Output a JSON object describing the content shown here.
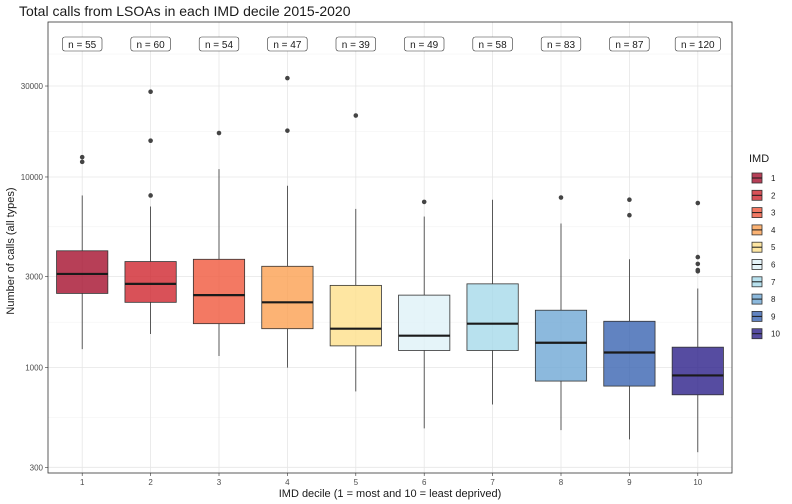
{
  "chart_data": {
    "type": "boxplot",
    "title": "Total calls from LSOAs in each IMD decile 2015-2020",
    "xlabel": "IMD decile (1 = most and 10 = least deprived)",
    "ylabel": "Number of calls (all types)",
    "y_scale": "log10",
    "ylim": [
      280,
      65000
    ],
    "y_ticks": [
      300,
      1000,
      3000,
      10000,
      30000
    ],
    "y_tick_labels": [
      "300",
      "1000",
      "3000",
      "10000",
      "30000"
    ],
    "grid": true,
    "legend_title": "IMD",
    "legend_position": "right",
    "categories": [
      "1",
      "2",
      "3",
      "4",
      "5",
      "6",
      "7",
      "8",
      "9",
      "10"
    ],
    "colors": [
      "#A50F2D",
      "#D0252E",
      "#F0583C",
      "#FBA051",
      "#FEE08B",
      "#DEF1F8",
      "#A6D9EA",
      "#6FA8D4",
      "#3A64B1",
      "#2C1F8A"
    ],
    "n_labels": [
      "n = 55",
      "n = 60",
      "n = 54",
      "n = 47",
      "n = 39",
      "n = 49",
      "n = 58",
      "n = 83",
      "n = 87",
      "n = 120"
    ],
    "boxes": [
      {
        "decile": "1",
        "whisker_low": 1250,
        "q1": 2450,
        "median": 3100,
        "q3": 4100,
        "whisker_high": 8000,
        "outliers": [
          12000,
          12700
        ]
      },
      {
        "decile": "2",
        "whisker_low": 1500,
        "q1": 2200,
        "median": 2750,
        "q3": 3600,
        "whisker_high": 7000,
        "outliers": [
          8000,
          15500,
          28000
        ]
      },
      {
        "decile": "3",
        "whisker_low": 1150,
        "q1": 1700,
        "median": 2400,
        "q3": 3700,
        "whisker_high": 11000,
        "outliers": [
          17000
        ]
      },
      {
        "decile": "4",
        "whisker_low": 1000,
        "q1": 1600,
        "median": 2200,
        "q3": 3400,
        "whisker_high": 9000,
        "outliers": [
          17500,
          33000
        ]
      },
      {
        "decile": "5",
        "whisker_low": 750,
        "q1": 1300,
        "median": 1600,
        "q3": 2700,
        "whisker_high": 6800,
        "outliers": [
          21000
        ]
      },
      {
        "decile": "6",
        "whisker_low": 480,
        "q1": 1230,
        "median": 1470,
        "q3": 2400,
        "whisker_high": 6200,
        "outliers": [
          7400
        ]
      },
      {
        "decile": "7",
        "whisker_low": 640,
        "q1": 1230,
        "median": 1700,
        "q3": 2750,
        "whisker_high": 7600,
        "outliers": []
      },
      {
        "decile": "8",
        "whisker_low": 470,
        "q1": 850,
        "median": 1350,
        "q3": 2000,
        "whisker_high": 5700,
        "outliers": [
          7800
        ]
      },
      {
        "decile": "9",
        "whisker_low": 420,
        "q1": 800,
        "median": 1200,
        "q3": 1750,
        "whisker_high": 3700,
        "outliers": [
          6300,
          7600
        ]
      },
      {
        "decile": "10",
        "whisker_low": 360,
        "q1": 720,
        "median": 910,
        "q3": 1280,
        "whisker_high": 2600,
        "outliers": [
          3200,
          3250,
          3500,
          3800,
          7300
        ]
      }
    ]
  }
}
